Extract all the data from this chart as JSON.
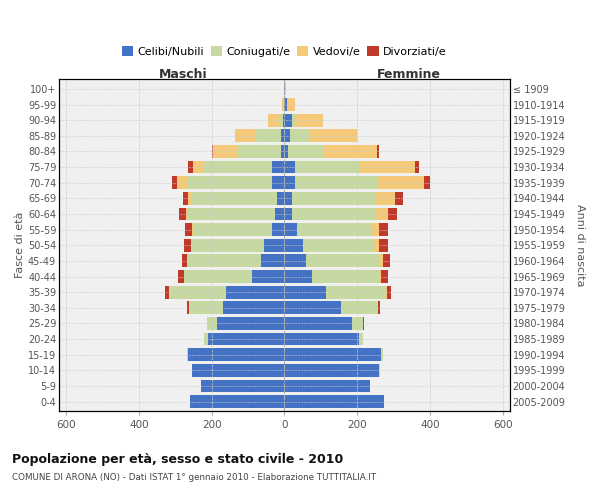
{
  "age_groups_bottom_to_top": [
    "0-4",
    "5-9",
    "10-14",
    "15-19",
    "20-24",
    "25-29",
    "30-34",
    "35-39",
    "40-44",
    "45-49",
    "50-54",
    "55-59",
    "60-64",
    "65-69",
    "70-74",
    "75-79",
    "80-84",
    "85-89",
    "90-94",
    "95-99",
    "100+"
  ],
  "birth_years_bottom_to_top": [
    "2005-2009",
    "2000-2004",
    "1995-1999",
    "1990-1994",
    "1985-1989",
    "1980-1984",
    "1975-1979",
    "1970-1974",
    "1965-1969",
    "1960-1964",
    "1955-1959",
    "1950-1954",
    "1945-1949",
    "1940-1944",
    "1935-1939",
    "1930-1934",
    "1925-1929",
    "1920-1924",
    "1915-1919",
    "1910-1914",
    "≤ 1909"
  ],
  "colors": {
    "celibi": "#4472c4",
    "coniugati": "#c5d9a0",
    "vedovi": "#f5c97a",
    "divorziati": "#c0392b"
  },
  "male_celibi": [
    260,
    230,
    255,
    265,
    210,
    185,
    170,
    160,
    90,
    65,
    55,
    35,
    25,
    20,
    35,
    35,
    10,
    10,
    5,
    2,
    2
  ],
  "male_coniugati": [
    0,
    0,
    0,
    2,
    10,
    25,
    90,
    155,
    185,
    200,
    200,
    215,
    240,
    235,
    230,
    185,
    120,
    70,
    10,
    0,
    0
  ],
  "male_vedovi": [
    0,
    0,
    0,
    0,
    2,
    2,
    2,
    2,
    2,
    2,
    2,
    3,
    5,
    10,
    30,
    30,
    65,
    55,
    30,
    5,
    0
  ],
  "male_divorziati": [
    0,
    0,
    0,
    0,
    0,
    0,
    5,
    10,
    15,
    15,
    20,
    20,
    20,
    15,
    15,
    15,
    5,
    0,
    0,
    0,
    0
  ],
  "female_celibi": [
    275,
    235,
    260,
    265,
    205,
    185,
    155,
    115,
    75,
    60,
    50,
    35,
    20,
    20,
    30,
    30,
    10,
    15,
    20,
    8,
    2
  ],
  "female_coniugati": [
    0,
    0,
    2,
    5,
    10,
    30,
    100,
    165,
    185,
    200,
    195,
    205,
    230,
    230,
    225,
    175,
    100,
    55,
    10,
    2,
    0
  ],
  "female_vedovi": [
    0,
    0,
    0,
    0,
    2,
    2,
    2,
    3,
    5,
    10,
    15,
    20,
    35,
    55,
    130,
    155,
    145,
    130,
    75,
    20,
    2
  ],
  "female_divorziati": [
    0,
    0,
    0,
    0,
    0,
    2,
    5,
    10,
    20,
    20,
    25,
    25,
    25,
    20,
    15,
    10,
    5,
    0,
    0,
    0,
    0
  ],
  "xlim": 620,
  "title": "Popolazione per età, sesso e stato civile - 2010",
  "subtitle": "COMUNE DI ARONA (NO) - Dati ISTAT 1° gennaio 2010 - Elaborazione TUTTITALIA.IT",
  "header_left": "Maschi",
  "header_right": "Femmine",
  "ylabel_left": "Fasce di età",
  "ylabel_right": "Anni di nascita",
  "bg_color": "#ffffff",
  "plot_bg": "#f0f0f0",
  "grid_color": "#cccccc",
  "bar_height": 0.82,
  "legend_labels": [
    "Celibi/Nubili",
    "Coniugati/e",
    "Vedovi/e",
    "Divorziati/e"
  ]
}
